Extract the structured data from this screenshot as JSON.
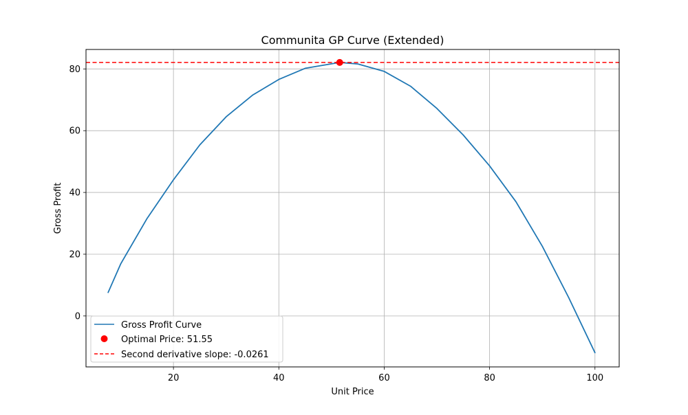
{
  "chart_data": {
    "type": "line",
    "title": "Communita GP Curve (Extended)",
    "xlabel": "Unit Price",
    "ylabel": "Gross Profit",
    "xlim": [
      3.4,
      104.6
    ],
    "ylim": [
      -16.5,
      86.3
    ],
    "xticks": [
      20,
      40,
      60,
      80,
      100
    ],
    "yticks": [
      0,
      20,
      40,
      60,
      80
    ],
    "grid": true,
    "legend_position": "lower-left",
    "series": [
      {
        "name": "Gross Profit Curve",
        "kind": "line",
        "color": "#1f77b4",
        "x": [
          7.6,
          10,
          15,
          20,
          25,
          30,
          35,
          40,
          45,
          51.55,
          55,
          60,
          65,
          70,
          75,
          80,
          85,
          90,
          95,
          100
        ],
        "y": [
          7.6,
          16.9,
          31.6,
          44.1,
          55.4,
          64.5,
          71.5,
          76.6,
          80.2,
          82.1,
          81.6,
          79.2,
          74.4,
          67.2,
          58.6,
          48.6,
          37.0,
          22.6,
          6.0,
          -11.9
        ]
      },
      {
        "name": "Optimal Price: 51.55",
        "kind": "scatter",
        "color": "#ff0000",
        "x": [
          51.55
        ],
        "y": [
          82.1
        ]
      },
      {
        "name": "Second derivative slope: -0.0261",
        "kind": "hline",
        "color": "#ff0000",
        "y": 82.1
      }
    ]
  }
}
